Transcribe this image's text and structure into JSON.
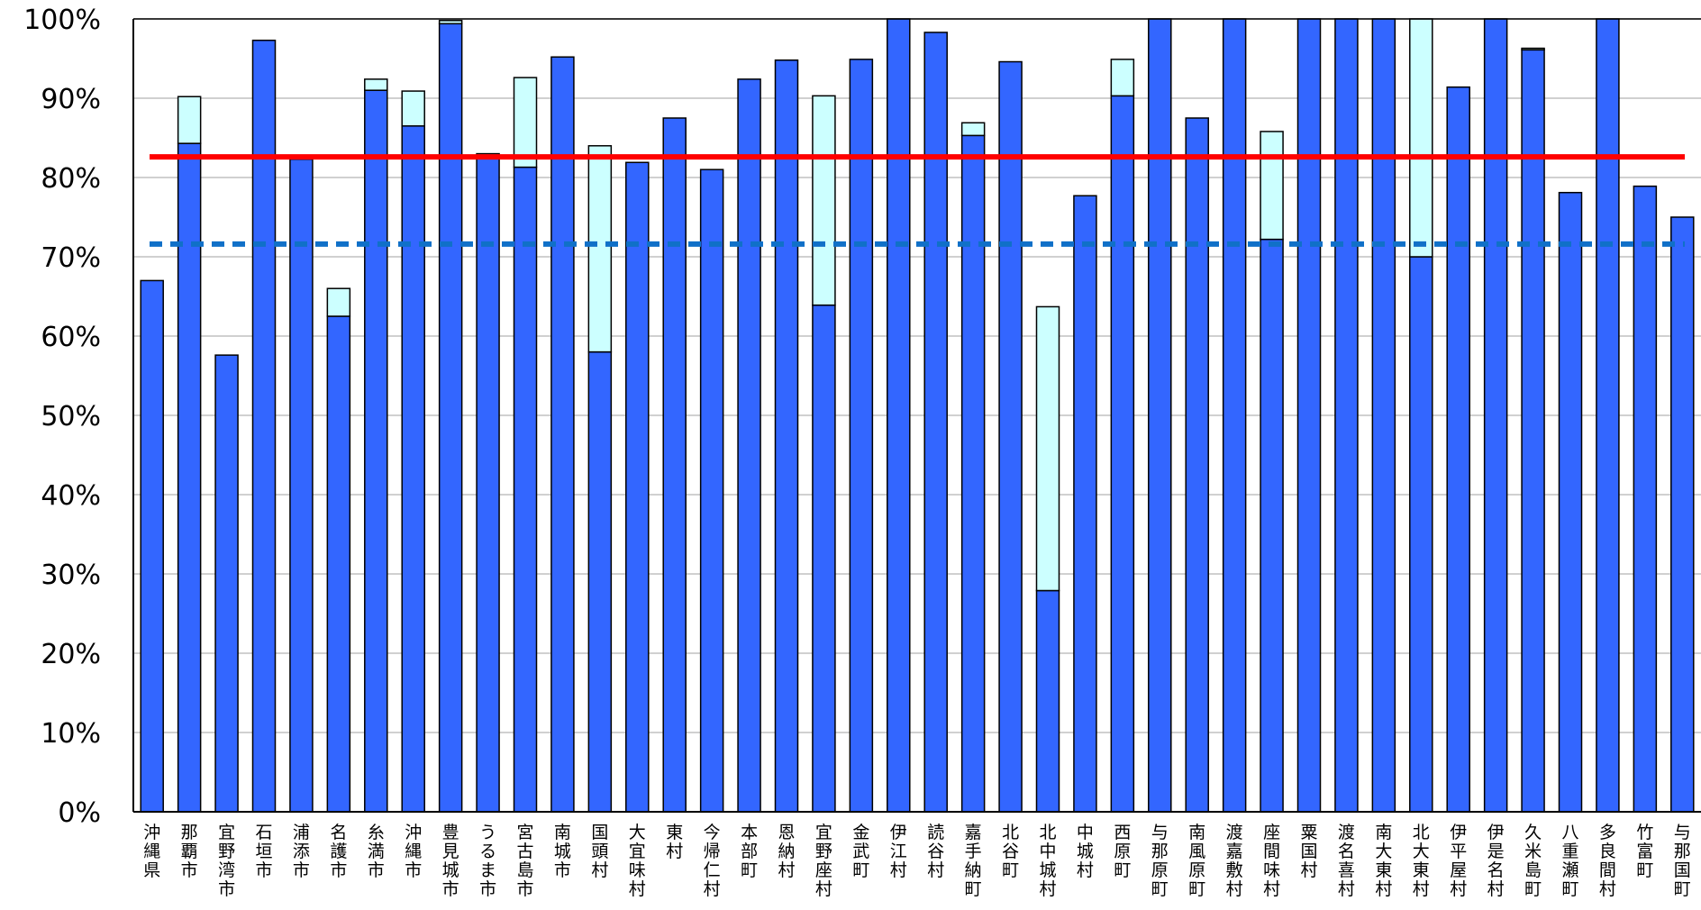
{
  "chart_data": {
    "type": "bar",
    "stacked": true,
    "ylim": [
      0,
      100
    ],
    "yticks": [
      "0%",
      "10%",
      "20%",
      "30%",
      "40%",
      "50%",
      "60%",
      "70%",
      "80%",
      "90%",
      "100%"
    ],
    "categories": [
      "沖縄県",
      "那覇市",
      "宜野湾市",
      "石垣市",
      "浦添市",
      "名護市",
      "糸満市",
      "沖縄市",
      "豊見城市",
      "うるま市",
      "宮古島市",
      "南城市",
      "国頭村",
      "大宜味村",
      "東村",
      "今帰仁村",
      "本部町",
      "恩納村",
      "宜野座村",
      "金武町",
      "伊江村",
      "読谷村",
      "嘉手納町",
      "北谷町",
      "北中城村",
      "中城村",
      "西原町",
      "与那原町",
      "南風原町",
      "渡嘉敷村",
      "座間味村",
      "粟国村",
      "渡名喜村",
      "南大東村",
      "北大東村",
      "伊平屋村",
      "伊是名村",
      "久米島町",
      "八重瀬町",
      "多良間村",
      "竹富町",
      "与那国町"
    ],
    "series": [
      {
        "values": [
          67.0,
          84.3,
          57.6,
          97.3,
          82.3,
          62.5,
          91.0,
          86.5,
          99.4,
          82.8,
          81.3,
          95.2,
          58.0,
          81.9,
          87.5,
          81.0,
          92.4,
          94.8,
          63.9,
          94.9,
          100,
          98.3,
          85.3,
          94.6,
          27.9,
          77.7,
          90.3,
          100,
          87.5,
          100,
          72.2,
          100,
          100,
          100,
          70.0,
          91.4,
          100,
          96.1,
          78.1,
          100,
          78.9,
          75.0
        ]
      },
      {
        "values": [
          0,
          5.9,
          0,
          0,
          0,
          3.5,
          1.4,
          4.4,
          0.4,
          0.2,
          11.3,
          0,
          26.0,
          0,
          0,
          0,
          0,
          0,
          26.4,
          0,
          0,
          0,
          1.6,
          0,
          35.8,
          0,
          4.6,
          0,
          0,
          0,
          13.6,
          0,
          0,
          0,
          30.0,
          0,
          0,
          0.2,
          0,
          0,
          0,
          0
        ]
      }
    ],
    "reference_lines": [
      {
        "value": 82.6,
        "style": "solid",
        "color": "#ff0000"
      },
      {
        "value": 71.6,
        "style": "dashed",
        "color": "#1070c8"
      }
    ],
    "colors": {
      "bar_primary": "#3366ff",
      "bar_secondary": "#ccffff",
      "grid": "#c0c0c0",
      "axis": "#000000"
    },
    "grid": true,
    "legend": "none",
    "title": "",
    "xlabel": "",
    "ylabel": ""
  }
}
